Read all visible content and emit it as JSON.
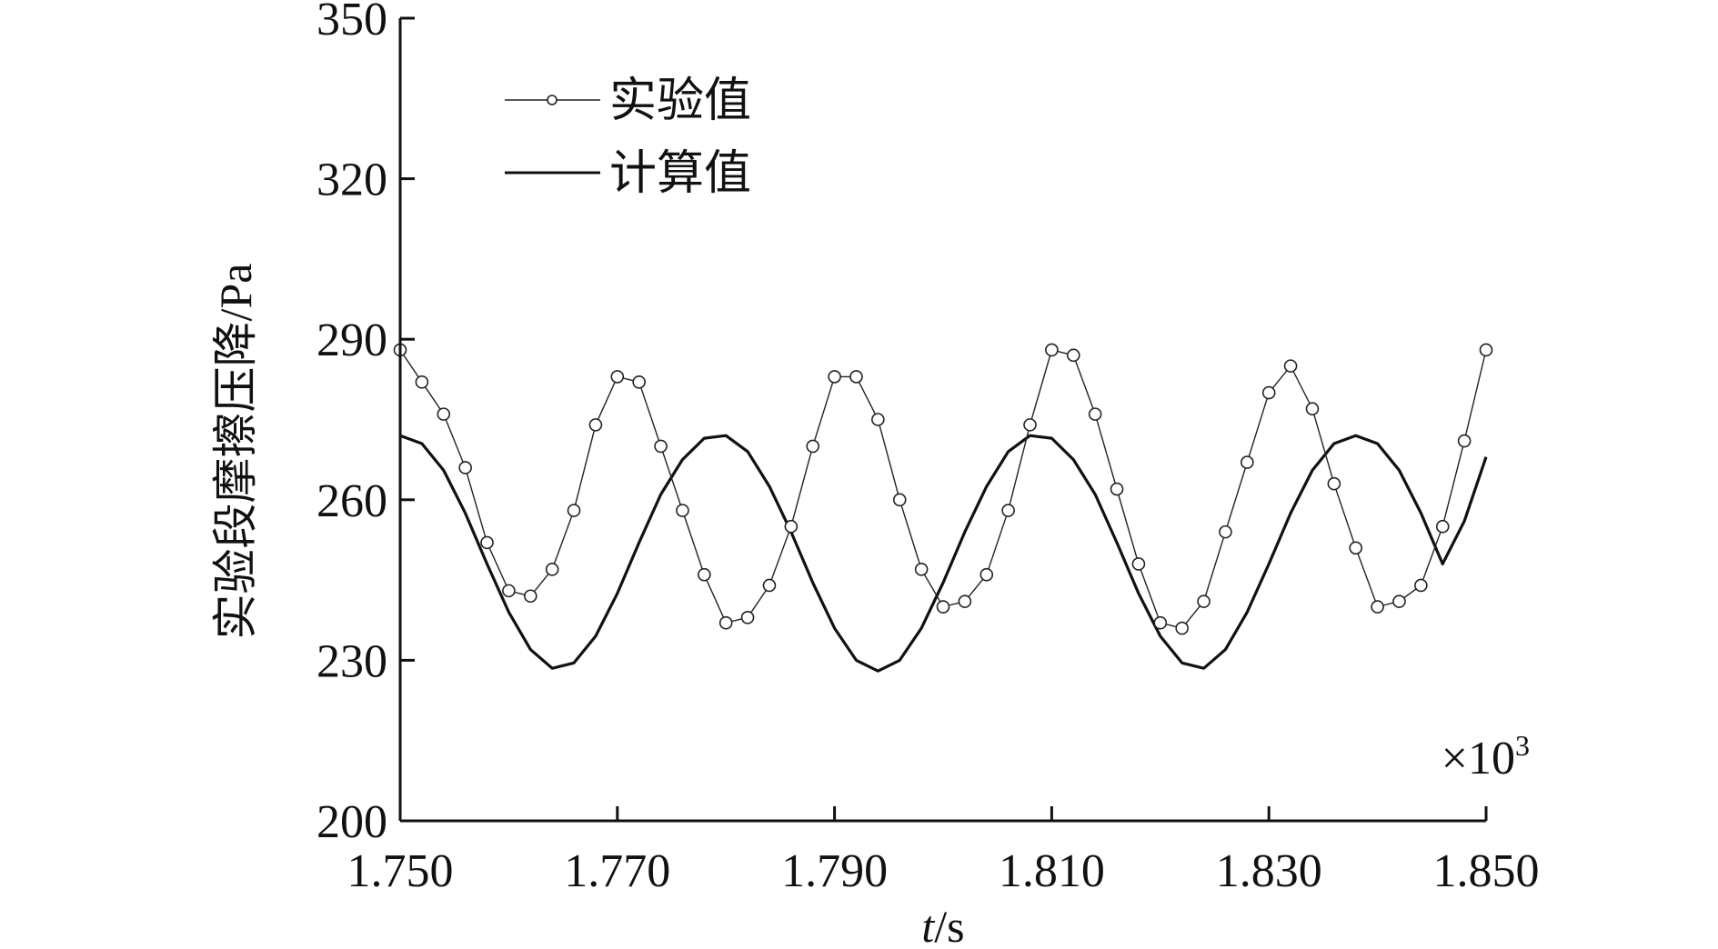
{
  "chart_data": {
    "type": "line",
    "title": "",
    "xlabel_italic": "t",
    "xlabel_unit": "/s",
    "ylabel": "实验段摩擦压降/Pa",
    "x_multiplier_base": "×10",
    "x_multiplier_exp": "3",
    "xlim": [
      1.75,
      1.85
    ],
    "ylim": [
      200,
      350
    ],
    "x_ticks": [
      1.75,
      1.77,
      1.79,
      1.81,
      1.83,
      1.85
    ],
    "x_tick_labels": [
      "1.750",
      "1.770",
      "1.790",
      "1.810",
      "1.830",
      "1.850"
    ],
    "y_ticks": [
      200,
      230,
      260,
      290,
      320,
      350
    ],
    "y_tick_labels": [
      "200",
      "230",
      "260",
      "290",
      "320",
      "350"
    ],
    "legend_position": "top-left",
    "grid": false,
    "series": [
      {
        "name": "实验值",
        "style": "line-with-hollow-circle-markers",
        "color": "#222222",
        "x": [
          1.75,
          1.752,
          1.754,
          1.756,
          1.758,
          1.76,
          1.762,
          1.764,
          1.766,
          1.768,
          1.77,
          1.772,
          1.774,
          1.776,
          1.778,
          1.78,
          1.782,
          1.784,
          1.786,
          1.788,
          1.79,
          1.792,
          1.794,
          1.796,
          1.798,
          1.8,
          1.802,
          1.804,
          1.806,
          1.808,
          1.81,
          1.812,
          1.814,
          1.816,
          1.818,
          1.82,
          1.822,
          1.824,
          1.826,
          1.828,
          1.83,
          1.832,
          1.834,
          1.836,
          1.838,
          1.84,
          1.842,
          1.844,
          1.846,
          1.848,
          1.85
        ],
        "y": [
          288,
          282,
          276,
          266,
          252,
          243,
          242,
          247,
          258,
          274,
          283,
          282,
          270,
          258,
          246,
          237,
          238,
          244,
          255,
          270,
          283,
          283,
          275,
          260,
          247,
          240,
          241,
          246,
          258,
          274,
          288,
          287,
          276,
          262,
          248,
          237,
          236,
          241,
          254,
          267,
          280,
          285,
          277,
          263,
          251,
          240,
          241,
          244,
          255,
          271,
          288
        ]
      },
      {
        "name": "计算值",
        "style": "solid-line",
        "color": "#111111",
        "x": [
          1.75,
          1.752,
          1.754,
          1.756,
          1.758,
          1.76,
          1.762,
          1.764,
          1.766,
          1.768,
          1.77,
          1.772,
          1.774,
          1.776,
          1.778,
          1.78,
          1.782,
          1.784,
          1.786,
          1.788,
          1.79,
          1.792,
          1.794,
          1.796,
          1.798,
          1.8,
          1.802,
          1.804,
          1.806,
          1.808,
          1.81,
          1.812,
          1.814,
          1.816,
          1.818,
          1.82,
          1.822,
          1.824,
          1.826,
          1.828,
          1.83,
          1.832,
          1.834,
          1.836,
          1.838,
          1.84,
          1.842,
          1.844,
          1.846,
          1.848,
          1.85
        ],
        "y": [
          272.0,
          270.5,
          265.5,
          257.5,
          248.0,
          239.0,
          232.0,
          228.5,
          229.5,
          234.5,
          242.5,
          252.0,
          261.0,
          267.5,
          271.5,
          272.0,
          269.0,
          262.5,
          254.0,
          244.5,
          236.0,
          230.0,
          228.0,
          230.0,
          236.0,
          244.5,
          254.0,
          262.5,
          269.0,
          272.0,
          271.5,
          267.5,
          261.0,
          252.0,
          242.5,
          234.5,
          229.5,
          228.5,
          232.0,
          239.0,
          248.0,
          257.5,
          265.5,
          270.5,
          272.0,
          270.5,
          265.5,
          257.5,
          248.0,
          256.0,
          268.0
        ]
      }
    ]
  }
}
